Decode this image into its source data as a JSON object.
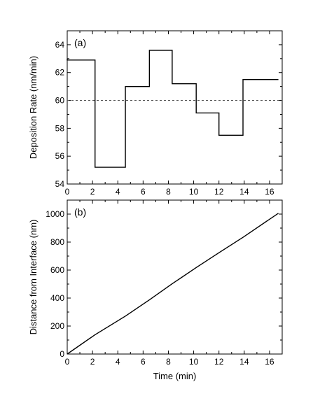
{
  "chart_data": [
    {
      "type": "line",
      "subtype": "step",
      "panel_label": "(a)",
      "xlabel": "",
      "ylabel": "Deposition Rate (nm/min)",
      "xlim": [
        0,
        17
      ],
      "ylim": [
        54,
        65
      ],
      "xticks": [
        0,
        2,
        4,
        6,
        8,
        10,
        12,
        14,
        16
      ],
      "yticks": [
        54,
        56,
        58,
        60,
        62,
        64
      ],
      "reference_line": {
        "y": 60,
        "style": "dashed"
      },
      "series": [
        {
          "x": [
            0,
            0,
            2.2,
            2.2,
            4.6,
            4.6,
            6.5,
            6.5,
            8.3,
            8.3,
            10.2,
            10.2,
            12.0,
            12.0,
            13.9,
            13.9,
            16.7
          ],
          "values": [
            63.0,
            62.9,
            62.9,
            55.2,
            55.2,
            61.0,
            61.0,
            63.6,
            63.6,
            61.2,
            61.2,
            59.1,
            59.1,
            57.5,
            57.5,
            61.5,
            61.5
          ]
        }
      ]
    },
    {
      "type": "line",
      "panel_label": "(b)",
      "xlabel": "Time (min)",
      "ylabel": "Distance from Interface (nm)",
      "xlim": [
        0,
        17
      ],
      "ylim": [
        0,
        1100
      ],
      "xticks": [
        0,
        2,
        4,
        6,
        8,
        10,
        12,
        14,
        16
      ],
      "yticks": [
        0,
        200,
        400,
        600,
        800,
        1000
      ],
      "series": [
        {
          "x": [
            0,
            2.2,
            4.6,
            6.5,
            8.3,
            10.2,
            12.0,
            13.9,
            16.7
          ],
          "values": [
            0,
            138,
            271,
            387,
            502,
            618,
            724,
            834,
            1006
          ]
        }
      ]
    }
  ]
}
